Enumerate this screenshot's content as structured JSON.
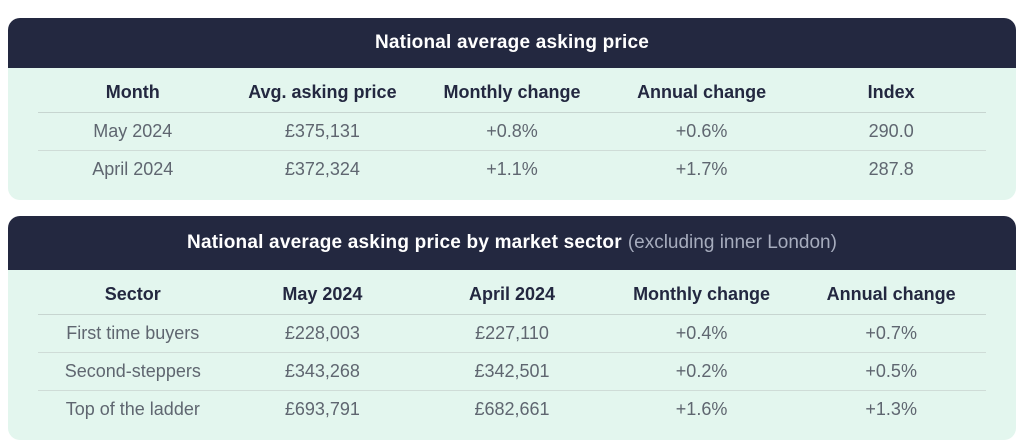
{
  "colors": {
    "header_background": "#232840",
    "body_background": "#e3f6ee",
    "title_text": "#ffffff",
    "title_suffix_text": "#a6acbd",
    "column_header_text": "#232840",
    "cell_text": "#5f6670",
    "divider": "#cfdcd7"
  },
  "tables": [
    {
      "title": "National average asking price",
      "title_suffix": "",
      "columns": [
        "Month",
        "Avg. asking price",
        "Monthly change",
        "Annual change",
        "Index"
      ],
      "rows": [
        [
          "May 2024",
          "£375,131",
          "+0.8%",
          "+0.6%",
          "290.0"
        ],
        [
          "April 2024",
          "£372,324",
          "+1.1%",
          "+1.7%",
          "287.8"
        ]
      ]
    },
    {
      "title": "National average asking price by market sector",
      "title_suffix": "(excluding inner London)",
      "columns": [
        "Sector",
        "May 2024",
        "April 2024",
        "Monthly change",
        "Annual change"
      ],
      "rows": [
        [
          "First time buyers",
          "£228,003",
          "£227,110",
          "+0.4%",
          "+0.7%"
        ],
        [
          "Second-steppers",
          "£343,268",
          "£342,501",
          "+0.2%",
          "+0.5%"
        ],
        [
          "Top of the ladder",
          "£693,791",
          "£682,661",
          "+1.6%",
          "+1.3%"
        ]
      ]
    }
  ]
}
